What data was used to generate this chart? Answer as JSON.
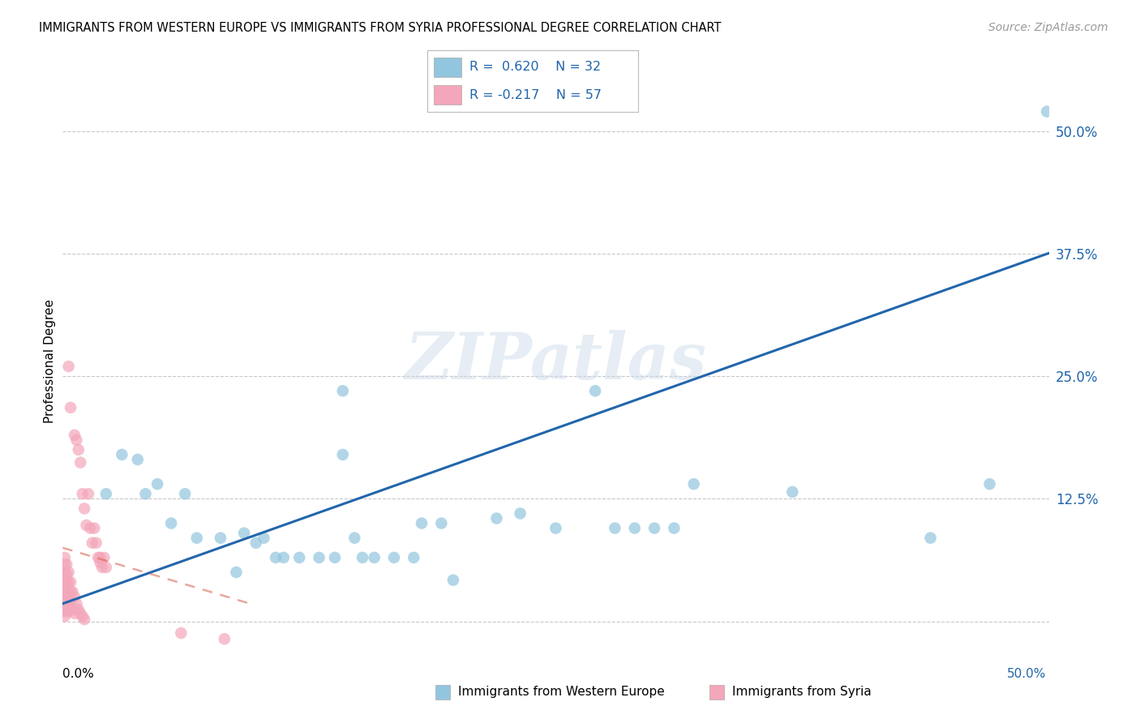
{
  "title": "IMMIGRANTS FROM WESTERN EUROPE VS IMMIGRANTS FROM SYRIA PROFESSIONAL DEGREE CORRELATION CHART",
  "source": "Source: ZipAtlas.com",
  "ylabel": "Professional Degree",
  "xlim": [
    0.0,
    0.5
  ],
  "ylim": [
    -0.03,
    0.56
  ],
  "yticks": [
    0.0,
    0.125,
    0.25,
    0.375,
    0.5
  ],
  "yticklabels": [
    "",
    "12.5%",
    "25.0%",
    "37.5%",
    "50.0%"
  ],
  "watermark_text": "ZIPatlas",
  "blue_color": "#92c5de",
  "pink_color": "#f4a6ba",
  "line_blue": "#2166ac",
  "line_pink": "#d6604d",
  "blue_scatter": [
    [
      0.022,
      0.13
    ],
    [
      0.03,
      0.17
    ],
    [
      0.038,
      0.165
    ],
    [
      0.042,
      0.13
    ],
    [
      0.048,
      0.14
    ],
    [
      0.055,
      0.1
    ],
    [
      0.062,
      0.13
    ],
    [
      0.068,
      0.085
    ],
    [
      0.08,
      0.085
    ],
    [
      0.088,
      0.05
    ],
    [
      0.092,
      0.09
    ],
    [
      0.098,
      0.08
    ],
    [
      0.102,
      0.085
    ],
    [
      0.108,
      0.065
    ],
    [
      0.112,
      0.065
    ],
    [
      0.12,
      0.065
    ],
    [
      0.13,
      0.065
    ],
    [
      0.138,
      0.065
    ],
    [
      0.142,
      0.17
    ],
    [
      0.148,
      0.085
    ],
    [
      0.152,
      0.065
    ],
    [
      0.158,
      0.065
    ],
    [
      0.168,
      0.065
    ],
    [
      0.178,
      0.065
    ],
    [
      0.182,
      0.1
    ],
    [
      0.192,
      0.1
    ],
    [
      0.198,
      0.042
    ],
    [
      0.22,
      0.105
    ],
    [
      0.232,
      0.11
    ],
    [
      0.142,
      0.235
    ],
    [
      0.27,
      0.235
    ],
    [
      0.32,
      0.14
    ],
    [
      0.37,
      0.132
    ],
    [
      0.25,
      0.095
    ],
    [
      0.28,
      0.095
    ],
    [
      0.29,
      0.095
    ],
    [
      0.3,
      0.095
    ],
    [
      0.31,
      0.095
    ],
    [
      0.44,
      0.085
    ],
    [
      0.47,
      0.14
    ],
    [
      0.499,
      0.52
    ]
  ],
  "pink_scatter": [
    [
      0.003,
      0.26
    ],
    [
      0.004,
      0.218
    ],
    [
      0.006,
      0.19
    ],
    [
      0.007,
      0.185
    ],
    [
      0.008,
      0.175
    ],
    [
      0.009,
      0.162
    ],
    [
      0.01,
      0.13
    ],
    [
      0.011,
      0.115
    ],
    [
      0.012,
      0.098
    ],
    [
      0.013,
      0.13
    ],
    [
      0.014,
      0.095
    ],
    [
      0.015,
      0.08
    ],
    [
      0.016,
      0.095
    ],
    [
      0.017,
      0.08
    ],
    [
      0.018,
      0.065
    ],
    [
      0.019,
      0.065
    ],
    [
      0.019,
      0.06
    ],
    [
      0.02,
      0.055
    ],
    [
      0.021,
      0.065
    ],
    [
      0.022,
      0.055
    ],
    [
      0.001,
      0.065
    ],
    [
      0.001,
      0.058
    ],
    [
      0.001,
      0.05
    ],
    [
      0.001,
      0.042
    ],
    [
      0.001,
      0.035
    ],
    [
      0.001,
      0.028
    ],
    [
      0.001,
      0.022
    ],
    [
      0.001,
      0.016
    ],
    [
      0.001,
      0.01
    ],
    [
      0.001,
      0.005
    ],
    [
      0.002,
      0.058
    ],
    [
      0.002,
      0.048
    ],
    [
      0.002,
      0.038
    ],
    [
      0.002,
      0.028
    ],
    [
      0.002,
      0.02
    ],
    [
      0.002,
      0.012
    ],
    [
      0.003,
      0.05
    ],
    [
      0.003,
      0.04
    ],
    [
      0.003,
      0.03
    ],
    [
      0.003,
      0.02
    ],
    [
      0.003,
      0.01
    ],
    [
      0.004,
      0.04
    ],
    [
      0.004,
      0.03
    ],
    [
      0.004,
      0.02
    ],
    [
      0.005,
      0.03
    ],
    [
      0.005,
      0.012
    ],
    [
      0.006,
      0.025
    ],
    [
      0.006,
      0.008
    ],
    [
      0.007,
      0.018
    ],
    [
      0.008,
      0.012
    ],
    [
      0.009,
      0.008
    ],
    [
      0.01,
      0.005
    ],
    [
      0.011,
      0.002
    ],
    [
      0.06,
      -0.012
    ],
    [
      0.082,
      -0.018
    ]
  ],
  "blue_line_intercept": 0.018,
  "blue_line_slope": 0.715,
  "pink_line_intercept": 0.075,
  "pink_line_slope": -0.6,
  "pink_line_xmax": 0.095
}
